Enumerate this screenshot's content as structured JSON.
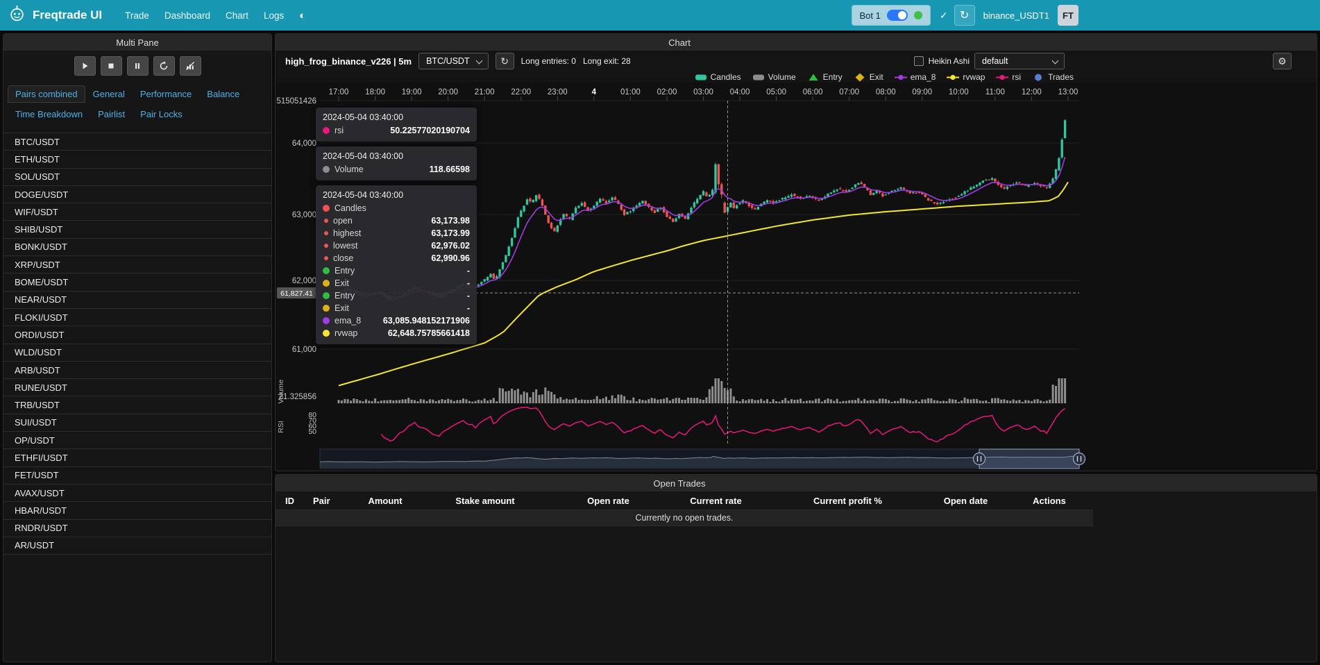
{
  "navbar": {
    "brand": "Freqtrade UI",
    "links": [
      "Trade",
      "Dashboard",
      "Chart",
      "Logs"
    ],
    "bot_badge": "Bot 1",
    "bot_name": "binance_USDT1",
    "avatar": "FT"
  },
  "icons": {
    "theme": "◐",
    "check": "✓",
    "refresh": "↻",
    "gear": "⚙"
  },
  "sidebar": {
    "title": "Multi Pane",
    "control_icons": [
      "play",
      "stop",
      "pause",
      "reload",
      "chart-off"
    ],
    "tabs": [
      "Pairs combined",
      "General",
      "Performance",
      "Balance",
      "Time Breakdown",
      "Pairlist",
      "Pair Locks"
    ],
    "active_tab": "Pairs combined",
    "pairs": [
      "BTC/USDT",
      "ETH/USDT",
      "SOL/USDT",
      "DOGE/USDT",
      "WIF/USDT",
      "SHIB/USDT",
      "BONK/USDT",
      "XRP/USDT",
      "BOME/USDT",
      "NEAR/USDT",
      "FLOKI/USDT",
      "ORDI/USDT",
      "WLD/USDT",
      "ARB/USDT",
      "RUNE/USDT",
      "TRB/USDT",
      "SUI/USDT",
      "OP/USDT",
      "ETHFI/USDT",
      "FET/USDT",
      "AVAX/USDT",
      "HBAR/USDT",
      "RNDR/USDT",
      "AR/USDT"
    ]
  },
  "chart": {
    "title": "Chart",
    "strategy": "high_frog_binance_v226 | 5m",
    "pair_select": "BTC/USDT",
    "entries_label": "Long entries: 0",
    "exits_label": "Long exit: 28",
    "heikin_label": "Heikin Ashi",
    "plot_config": "default",
    "legend": [
      {
        "label": "Candles",
        "marker": "rect",
        "color": "#2fc6a0"
      },
      {
        "label": "Volume",
        "marker": "rect",
        "color": "#8d8d8d"
      },
      {
        "label": "Entry",
        "marker": "triangle",
        "color": "#2fbf3f"
      },
      {
        "label": "Exit",
        "marker": "diamond",
        "color": "#ddb117"
      },
      {
        "label": "ema_8",
        "marker": "line",
        "color": "#a23ae6"
      },
      {
        "label": "rvwap",
        "marker": "line",
        "color": "#f5e72c"
      },
      {
        "label": "rsi",
        "marker": "line",
        "color": "#ec1680"
      },
      {
        "label": "Trades",
        "marker": "circle",
        "color": "#5b7bd5"
      }
    ],
    "tooltip": {
      "sections": [
        {
          "date": "2024-05-04 03:40:00",
          "rows": [
            {
              "name": "rsi",
              "color": "#ec1680",
              "value": "50.22577020190704"
            }
          ]
        },
        {
          "date": "2024-05-04 03:40:00",
          "rows": [
            {
              "name": "Volume",
              "color": "#8d8d8d",
              "value": "118.66598"
            }
          ]
        },
        {
          "date": "2024-05-04 03:40:00",
          "rows": [
            {
              "name": "Candles",
              "color": "#f05350",
              "value": ""
            },
            {
              "name": "open",
              "color": "#f05350",
              "small": true,
              "value": "63,173.98"
            },
            {
              "name": "highest",
              "color": "#f05350",
              "small": true,
              "value": "63,173.99"
            },
            {
              "name": "lowest",
              "color": "#f05350",
              "small": true,
              "value": "62,976.02"
            },
            {
              "name": "close",
              "color": "#f05350",
              "small": true,
              "value": "62,990.96"
            },
            {
              "name": "Entry",
              "color": "#2fbf3f",
              "value": "-"
            },
            {
              "name": "Exit",
              "color": "#ddb117",
              "value": "-"
            },
            {
              "name": "Entry",
              "color": "#2fbf3f",
              "value": "-"
            },
            {
              "name": "Exit",
              "color": "#ddb117",
              "value": "-"
            },
            {
              "name": "ema_8",
              "color": "#a23ae6",
              "value": "63,085.948152171906"
            },
            {
              "name": "rvwap",
              "color": "#f5e72c",
              "value": "62,648.75785661418"
            }
          ]
        }
      ]
    }
  },
  "colors": {
    "accent": "#1797b2",
    "up": "#2fc6a0",
    "down": "#f05350",
    "volume": "#a6a6a6",
    "ema_8": "#a23ae6",
    "rvwap": "#f5e72c",
    "rsi": "#ec1680",
    "entry": "#2fbf3f",
    "exit": "#ddb117",
    "trades": "#5b7bd5"
  },
  "open_trades": {
    "title": "Open Trades",
    "columns": [
      "ID",
      "Pair",
      "Amount",
      "Stake amount",
      "Open rate",
      "Current rate",
      "Current profit %",
      "Open date",
      "Actions"
    ],
    "empty": "Currently no open trades."
  },
  "chart_data": {
    "type": "candlestick",
    "pair": "BTC/USDT",
    "timeframe": "5m",
    "hours": [
      "17:00",
      "18:00",
      "19:00",
      "20:00",
      "21:00",
      "22:00",
      "23:00",
      "4",
      "01:00",
      "02:00",
      "03:00",
      "04:00",
      "05:00",
      "06:00",
      "07:00",
      "08:00",
      "09:00",
      "10:00",
      "11:00",
      "12:00",
      "13:00"
    ],
    "price_axis": {
      "ticks": [
        "64,000",
        "63,000",
        "62,000",
        "61,000"
      ],
      "values": [
        64000,
        63000,
        62000,
        61000
      ],
      "top_label": "515051426"
    },
    "volume_axis_label": "21.325856",
    "rsi_ticks": [
      "80",
      "70",
      "60",
      "50"
    ],
    "pane_labels": {
      "volume": "Volume",
      "rsi": "RSI"
    },
    "axis_pointer": {
      "price_label": "61,827.41",
      "time_minute": 640
    },
    "tooltip_point": {
      "time": "2024-05-04 03:40:00",
      "rsi": 50.22577020190704,
      "volume": 118.66598,
      "open": 63173.98,
      "high": 63173.99,
      "low": 62976.02,
      "close": 62990.96,
      "ema_8": 63085.948152171906,
      "rvwap": 62648.75785661418
    },
    "price_anchors": [
      [
        0,
        61800
      ],
      [
        20,
        61880
      ],
      [
        45,
        61760
      ],
      [
        70,
        61830
      ],
      [
        90,
        61700
      ],
      [
        110,
        61790
      ],
      [
        130,
        61900
      ],
      [
        150,
        61830
      ],
      [
        170,
        61760
      ],
      [
        190,
        61860
      ],
      [
        210,
        61950
      ],
      [
        230,
        61900
      ],
      [
        245,
        62010
      ],
      [
        255,
        62090
      ],
      [
        262,
        61990
      ],
      [
        270,
        62160
      ],
      [
        280,
        62360
      ],
      [
        290,
        62620
      ],
      [
        300,
        62920
      ],
      [
        308,
        63060
      ],
      [
        315,
        63190
      ],
      [
        322,
        63120
      ],
      [
        330,
        63240
      ],
      [
        338,
        63150
      ],
      [
        345,
        62950
      ],
      [
        352,
        62790
      ],
      [
        360,
        62710
      ],
      [
        368,
        62860
      ],
      [
        375,
        62960
      ],
      [
        385,
        62890
      ],
      [
        395,
        63060
      ],
      [
        405,
        63130
      ],
      [
        415,
        63010
      ],
      [
        425,
        63090
      ],
      [
        435,
        63190
      ],
      [
        445,
        63130
      ],
      [
        455,
        63210
      ],
      [
        465,
        63110
      ],
      [
        475,
        62960
      ],
      [
        485,
        63010
      ],
      [
        495,
        63090
      ],
      [
        505,
        63160
      ],
      [
        515,
        63060
      ],
      [
        525,
        62990
      ],
      [
        535,
        63070
      ],
      [
        545,
        62930
      ],
      [
        555,
        62860
      ],
      [
        565,
        62960
      ],
      [
        575,
        62890
      ],
      [
        585,
        63060
      ],
      [
        595,
        63190
      ],
      [
        605,
        63290
      ],
      [
        612,
        63200
      ],
      [
        618,
        63280
      ],
      [
        625,
        63450
      ],
      [
        630,
        63250
      ],
      [
        635,
        63120
      ],
      [
        640,
        62990
      ],
      [
        645,
        63070
      ],
      [
        650,
        63130
      ],
      [
        655,
        63060
      ],
      [
        660,
        63100
      ],
      [
        670,
        63160
      ],
      [
        680,
        63090
      ],
      [
        690,
        63030
      ],
      [
        700,
        63110
      ],
      [
        710,
        63170
      ],
      [
        720,
        63130
      ],
      [
        735,
        63190
      ],
      [
        750,
        63250
      ],
      [
        765,
        63190
      ],
      [
        780,
        63230
      ],
      [
        795,
        63160
      ],
      [
        810,
        63260
      ],
      [
        825,
        63330
      ],
      [
        840,
        63290
      ],
      [
        855,
        63390
      ],
      [
        862,
        63430
      ],
      [
        870,
        63360
      ],
      [
        880,
        63250
      ],
      [
        890,
        63310
      ],
      [
        900,
        63230
      ],
      [
        915,
        63310
      ],
      [
        930,
        63350
      ],
      [
        945,
        63270
      ],
      [
        960,
        63290
      ],
      [
        975,
        63170
      ],
      [
        990,
        63110
      ],
      [
        1005,
        63170
      ],
      [
        1020,
        63210
      ],
      [
        1035,
        63290
      ],
      [
        1050,
        63370
      ],
      [
        1065,
        63450
      ],
      [
        1080,
        63480
      ],
      [
        1090,
        63390
      ],
      [
        1100,
        63340
      ],
      [
        1110,
        63390
      ],
      [
        1120,
        63430
      ],
      [
        1135,
        63370
      ],
      [
        1150,
        63410
      ],
      [
        1160,
        63380
      ],
      [
        1170,
        63350
      ],
      [
        1178,
        63430
      ],
      [
        1184,
        63570
      ],
      [
        1190,
        63790
      ],
      [
        1195,
        64060
      ],
      [
        1200,
        64320
      ]
    ],
    "rvwap_anchors": [
      [
        0,
        60470
      ],
      [
        60,
        60620
      ],
      [
        120,
        60780
      ],
      [
        180,
        60930
      ],
      [
        240,
        61090
      ],
      [
        270,
        61240
      ],
      [
        300,
        61520
      ],
      [
        330,
        61790
      ],
      [
        360,
        61910
      ],
      [
        390,
        62010
      ],
      [
        420,
        62130
      ],
      [
        450,
        62210
      ],
      [
        480,
        62290
      ],
      [
        510,
        62360
      ],
      [
        540,
        62430
      ],
      [
        570,
        62510
      ],
      [
        600,
        62580
      ],
      [
        640,
        62649
      ],
      [
        680,
        62720
      ],
      [
        720,
        62790
      ],
      [
        780,
        62880
      ],
      [
        840,
        62950
      ],
      [
        900,
        63000
      ],
      [
        960,
        63040
      ],
      [
        1020,
        63080
      ],
      [
        1080,
        63110
      ],
      [
        1140,
        63140
      ],
      [
        1170,
        63160
      ],
      [
        1185,
        63230
      ],
      [
        1193,
        63330
      ],
      [
        1200,
        63430
      ]
    ]
  }
}
